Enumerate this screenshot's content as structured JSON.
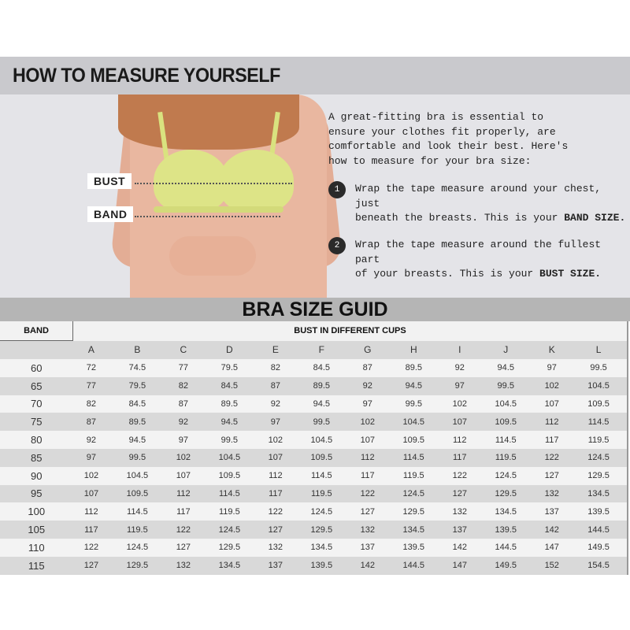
{
  "header": {
    "title": "HOW TO MEASURE YOURSELF"
  },
  "figure": {
    "bust_label": "BUST",
    "band_label": "BAND"
  },
  "intro": [
    "A great-fitting bra is essential to",
    "ensure your clothes fit properly, are",
    "comfortable and look their best. Here's",
    "how to measure for your bra size:"
  ],
  "steps": [
    {
      "number": "1",
      "line1": "Wrap the tape measure around your chest, just",
      "line2": "beneath the breasts. This is your ",
      "bold": "BAND SIZE."
    },
    {
      "number": "2",
      "line1": "Wrap the tape measure around the fullest part",
      "line2": "of your breasts. This is your ",
      "bold": "BUST SIZE."
    }
  ],
  "table": {
    "title": "BRA SIZE GUID",
    "band_header": "BAND",
    "cups_header": "BUST IN DIFFERENT CUPS",
    "cups": [
      "A",
      "B",
      "C",
      "D",
      "E",
      "F",
      "G",
      "H",
      "I",
      "J",
      "K",
      "L"
    ],
    "rows": [
      [
        "60",
        "72",
        "74.5",
        "77",
        "79.5",
        "82",
        "84.5",
        "87",
        "89.5",
        "92",
        "94.5",
        "97",
        "99.5"
      ],
      [
        "65",
        "77",
        "79.5",
        "82",
        "84.5",
        "87",
        "89.5",
        "92",
        "94.5",
        "97",
        "99.5",
        "102",
        "104.5"
      ],
      [
        "70",
        "82",
        "84.5",
        "87",
        "89.5",
        "92",
        "94.5",
        "97",
        "99.5",
        "102",
        "104.5",
        "107",
        "109.5"
      ],
      [
        "75",
        "87",
        "89.5",
        "92",
        "94.5",
        "97",
        "99.5",
        "102",
        "104.5",
        "107",
        "109.5",
        "112",
        "114.5"
      ],
      [
        "80",
        "92",
        "94.5",
        "97",
        "99.5",
        "102",
        "104.5",
        "107",
        "109.5",
        "112",
        "114.5",
        "117",
        "119.5"
      ],
      [
        "85",
        "97",
        "99.5",
        "102",
        "104.5",
        "107",
        "109.5",
        "112",
        "114.5",
        "117",
        "119.5",
        "122",
        "124.5"
      ],
      [
        "90",
        "102",
        "104.5",
        "107",
        "109.5",
        "112",
        "114.5",
        "117",
        "119.5",
        "122",
        "124.5",
        "127",
        "129.5"
      ],
      [
        "95",
        "107",
        "109.5",
        "112",
        "114.5",
        "117",
        "119.5",
        "122",
        "124.5",
        "127",
        "129.5",
        "132",
        "134.5"
      ],
      [
        "100",
        "112",
        "114.5",
        "117",
        "119.5",
        "122",
        "124.5",
        "127",
        "129.5",
        "132",
        "134.5",
        "137",
        "139.5"
      ],
      [
        "105",
        "117",
        "119.5",
        "122",
        "124.5",
        "127",
        "129.5",
        "132",
        "134.5",
        "137",
        "139.5",
        "142",
        "144.5"
      ],
      [
        "110",
        "122",
        "124.5",
        "127",
        "129.5",
        "132",
        "134.5",
        "137",
        "139.5",
        "142",
        "144.5",
        "147",
        "149.5"
      ],
      [
        "115",
        "127",
        "129.5",
        "132",
        "134.5",
        "137",
        "139.5",
        "142",
        "144.5",
        "147",
        "149.5",
        "152",
        "154.5"
      ]
    ]
  }
}
